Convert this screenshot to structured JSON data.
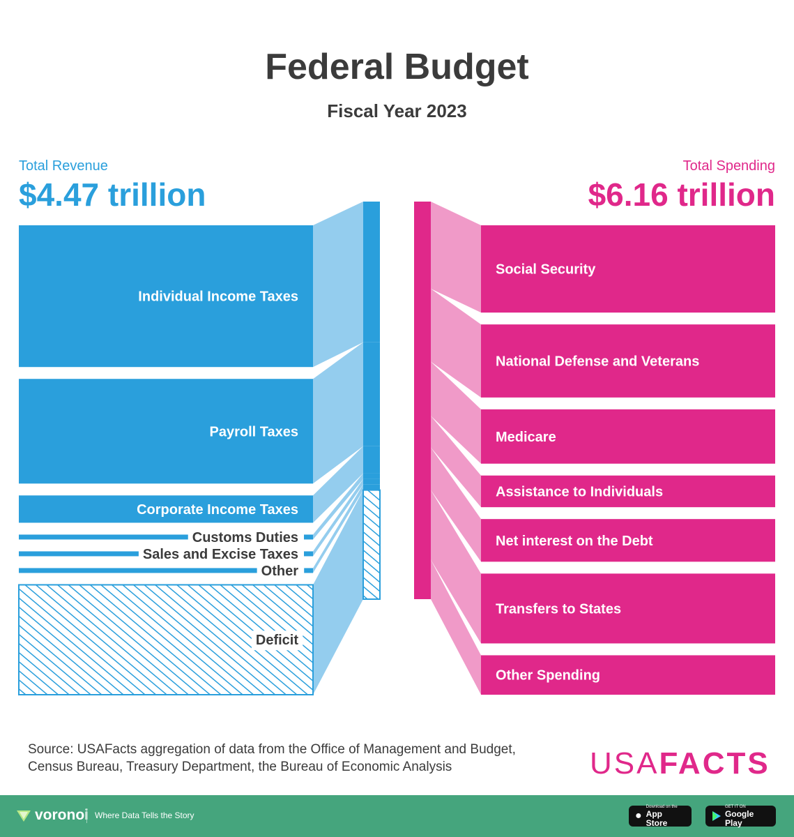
{
  "title": "Federal Budget",
  "subtitle": "Fiscal Year 2023",
  "revenue": {
    "label": "Total Revenue",
    "total": "$4.47 trillion"
  },
  "spending": {
    "label": "Total Spending",
    "total": "$6.16 trillion"
  },
  "colors": {
    "revenue": "#2a9fdc",
    "revenue_light": "#94cdee",
    "spending": "#e0288a",
    "spending_light": "#f09ac8",
    "text": "#3b3b3b"
  },
  "chart_data": {
    "type": "sankey",
    "units": "trillion USD",
    "revenue": [
      {
        "name": "Individual Income Taxes",
        "value": 2.18
      },
      {
        "name": "Payroll Taxes",
        "value": 1.61
      },
      {
        "name": "Corporate Income Taxes",
        "value": 0.42
      },
      {
        "name": "Customs Duties",
        "value": 0.09
      },
      {
        "name": "Sales and Excise Taxes",
        "value": 0.08
      },
      {
        "name": "Other",
        "value": 0.09
      },
      {
        "name": "Deficit",
        "value": 1.69,
        "hatched": true
      }
    ],
    "spending": [
      {
        "name": "Social Security",
        "value": 1.35
      },
      {
        "name": "National Defense and Veterans",
        "value": 1.13
      },
      {
        "name": "Medicare",
        "value": 0.84
      },
      {
        "name": "Assistance to Individuals",
        "value": 0.49
      },
      {
        "name": "Net interest on the Debt",
        "value": 0.66
      },
      {
        "name": "Transfers to States",
        "value": 1.08
      },
      {
        "name": "Other Spending",
        "value": 0.61
      }
    ]
  },
  "source": {
    "line1": "Source: USAFacts aggregation of data from the Office of Management and Budget,",
    "line2": "Census Bureau, Treasury Department, the Bureau of Economic Analysis"
  },
  "logo": {
    "part1": "USA",
    "part2": "FACTS"
  },
  "footer": {
    "brand": "voronoi",
    "tagline": "Where Data Tells the Story",
    "app_store_small": "Download on the",
    "app_store_big": "App Store",
    "google_small": "GET IT ON",
    "google_big": "Google Play"
  }
}
